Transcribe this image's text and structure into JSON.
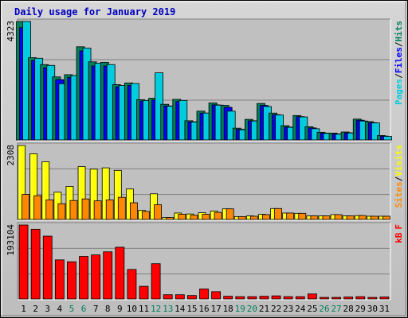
{
  "chart_data": {
    "type": "bar",
    "title": "Daily usage for January 2019",
    "days": [
      "1",
      "2",
      "3",
      "4",
      "5",
      "6",
      "7",
      "8",
      "9",
      "10",
      "11",
      "12",
      "13",
      "14",
      "15",
      "16",
      "17",
      "18",
      "19",
      "20",
      "21",
      "22",
      "23",
      "24",
      "25",
      "26",
      "27",
      "28",
      "29",
      "30",
      "31"
    ],
    "weekend_days": [
      "5",
      "6",
      "12",
      "13",
      "19",
      "20",
      "26",
      "27"
    ],
    "colors": {
      "hits": "#00805c",
      "files": "#0000ff",
      "pages": "#00ccdd",
      "visits": "#ffff00",
      "sites": "#ff8800",
      "kbytes": "#ff0000",
      "weekday_label": "#000000",
      "weekend_label": "#00805c",
      "title": "#0000c0"
    },
    "panels": [
      {
        "name": "hits-files-pages",
        "ymax": 4323,
        "ymax_label": "4323",
        "legend": [
          "Pages",
          "/",
          "Files",
          "/",
          "Hits"
        ],
        "series": [
          {
            "name": "Hits",
            "values": [
              4323,
              3000,
              2750,
              2300,
              2380,
              3400,
              2850,
              2830,
              2020,
              2080,
              1470,
              1520,
              1300,
              1480,
              700,
              1050,
              1350,
              1260,
              430,
              750,
              1330,
              980,
              520,
              890,
              480,
              280,
              250,
              290,
              760,
              670,
              160
            ]
          },
          {
            "name": "Files",
            "values": [
              4100,
              2900,
              2630,
              2200,
              2280,
              3250,
              2700,
              2700,
              1940,
              1990,
              1420,
              1460,
              1240,
              1400,
              660,
              980,
              1280,
              1190,
              390,
              700,
              1260,
              920,
              470,
              850,
              440,
              250,
              220,
              260,
              720,
              630,
              140
            ]
          },
          {
            "name": "Pages",
            "values": [
              4323,
              2980,
              2720,
              2050,
              2350,
              3350,
              2800,
              2750,
              1990,
              2060,
              1440,
              2450,
              1230,
              1440,
              650,
              980,
              1270,
              1050,
              370,
              690,
              1220,
              910,
              460,
              840,
              410,
              240,
              210,
              250,
              690,
              620,
              130
            ]
          }
        ]
      },
      {
        "name": "visits-sites",
        "ymax": 2308,
        "ymax_label": "2308",
        "legend": [
          "Sites",
          "/",
          "Visits"
        ],
        "series": [
          {
            "name": "Visits",
            "values": [
              2308,
              2050,
              1800,
              850,
              1030,
              1650,
              1570,
              1610,
              1530,
              950,
              280,
              800,
              60,
              200,
              170,
              210,
              260,
              330,
              90,
              110,
              160,
              340,
              200,
              190,
              110,
              110,
              150,
              110,
              120,
              100,
              100
            ]
          },
          {
            "name": "Sites",
            "values": [
              780,
              740,
              610,
              490,
              590,
              640,
              580,
              610,
              690,
              520,
              250,
              460,
              60,
              160,
              130,
              160,
              220,
              330,
              90,
              100,
              150,
              340,
              200,
              190,
              110,
              110,
              150,
              110,
              120,
              100,
              100
            ]
          }
        ]
      },
      {
        "name": "kbytes",
        "ymax": 193104,
        "ymax_label": "193104",
        "legend": [
          "kB",
          "F"
        ],
        "series": [
          {
            "name": "kB F",
            "values": [
              193104,
              182000,
              164000,
              102000,
              97000,
              111000,
              115000,
              123000,
              135000,
              77000,
              33000,
              92000,
              11000,
              11000,
              9000,
              26000,
              19000,
              7000,
              6000,
              6000,
              7000,
              8000,
              6000,
              6000,
              13000,
              4000,
              4000,
              5000,
              6000,
              4000,
              5000
            ]
          }
        ]
      }
    ]
  }
}
